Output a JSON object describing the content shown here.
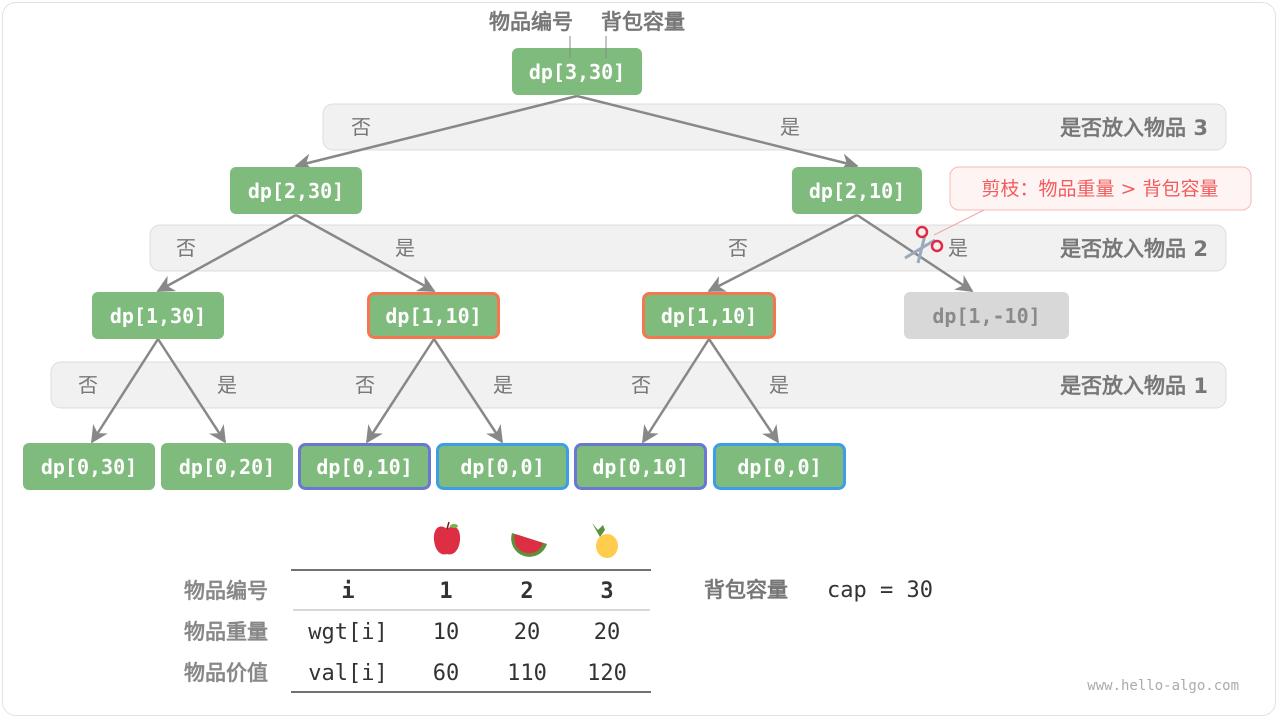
{
  "header": {
    "item_label": "物品编号",
    "cap_label": "背包容量"
  },
  "bands": [
    {
      "yes": "是",
      "no": "否",
      "title": "是否放入物品 3"
    },
    {
      "yes": "是",
      "no": "否",
      "title": "是否放入物品 2"
    },
    {
      "yes": "是",
      "no": "否",
      "title": "是否放入物品 1"
    }
  ],
  "nodes": [
    {
      "label": "dp[3,30]",
      "style": "normal"
    },
    {
      "label": "dp[2,30]",
      "style": "normal"
    },
    {
      "label": "dp[2,10]",
      "style": "normal"
    },
    {
      "label": "dp[1,30]",
      "style": "normal"
    },
    {
      "label": "dp[1,10]",
      "style": "repeated"
    },
    {
      "label": "dp[1,10]",
      "style": "repeated"
    },
    {
      "label": "dp[1,-10]",
      "style": "pruned"
    },
    {
      "label": "dp[0,30]",
      "style": "normal"
    },
    {
      "label": "dp[0,20]",
      "style": "normal"
    },
    {
      "label": "dp[0,10]",
      "style": "repeated-a"
    },
    {
      "label": "dp[0,0]",
      "style": "repeated-b"
    },
    {
      "label": "dp[0,10]",
      "style": "repeated-a"
    },
    {
      "label": "dp[0,0]",
      "style": "repeated-b"
    }
  ],
  "prune_note": "剪枝：物品重量 > 背包容量",
  "colors": {
    "node": "#80bb7e",
    "repeated": "#f4774f",
    "repeated_a": "#6b78d0",
    "repeated_b": "#3d9ee6",
    "pruned": "#d8d8d8",
    "band": "#f1f1f1",
    "note": "#f25c5c"
  },
  "table": {
    "icons": [
      "apple-icon",
      "watermelon-icon",
      "pineapple-icon"
    ],
    "rows": [
      {
        "label": "物品编号",
        "key": "i",
        "values": [
          "1",
          "2",
          "3"
        ]
      },
      {
        "label": "物品重量",
        "key": "wgt[i]",
        "values": [
          "10",
          "20",
          "20"
        ]
      },
      {
        "label": "物品价值",
        "key": "val[i]",
        "values": [
          "60",
          "110",
          "120"
        ]
      }
    ]
  },
  "capacity": {
    "label": "背包容量",
    "expr": "cap = 30"
  },
  "watermark": "www.hello-algo.com"
}
